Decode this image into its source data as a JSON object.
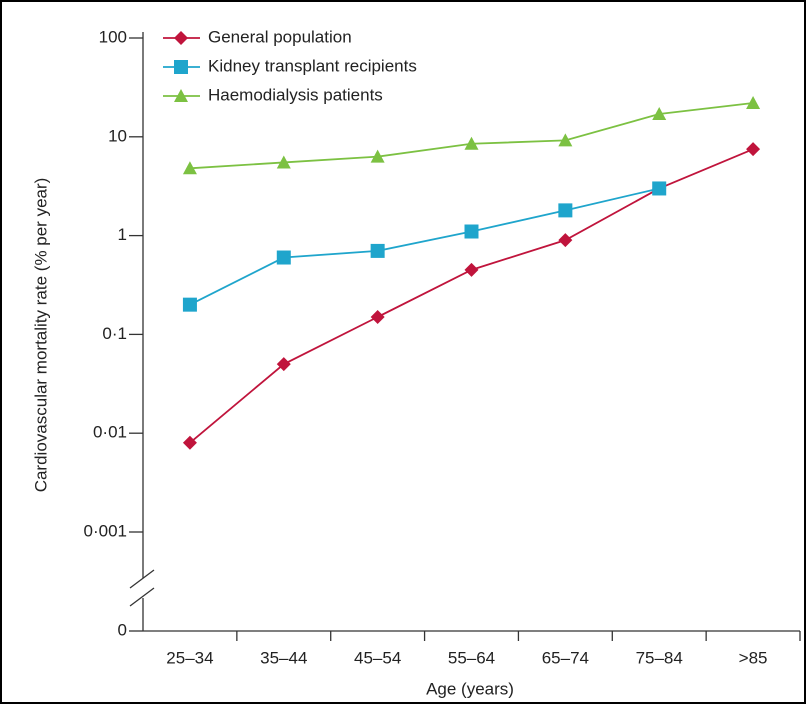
{
  "chart_data": {
    "type": "line",
    "x_label": "Age (years)",
    "y_label": "Cardiovascular mortality rate (% per year)",
    "categories": [
      "25–34",
      "35–44",
      "45–54",
      "55–64",
      "65–74",
      "75–84",
      ">85"
    ],
    "series": [
      {
        "name": "General population",
        "color": "#c0143c",
        "marker": "diamond",
        "values": [
          0.008,
          0.05,
          0.15,
          0.45,
          0.9,
          3,
          7.5
        ]
      },
      {
        "name": "Kidney transplant recipients",
        "color": "#1fa5cc",
        "marker": "square",
        "values": [
          0.2,
          0.6,
          0.7,
          1.1,
          1.8,
          3,
          null
        ]
      },
      {
        "name": "Haemodialysis patients",
        "color": "#7cc142",
        "marker": "triangle",
        "values": [
          4.8,
          5.5,
          6.3,
          8.5,
          9.2,
          17,
          22
        ]
      }
    ],
    "log_y": true,
    "axis_break": true,
    "ylim": [
      0.001,
      100
    ],
    "yticks": [
      100,
      10,
      1,
      {
        "value": 0.1,
        "label": "0·1"
      },
      {
        "value": 0.01,
        "label": "0·01"
      },
      {
        "value": 0.001,
        "label": "0·001"
      },
      0
    ],
    "legend": "top-left"
  }
}
